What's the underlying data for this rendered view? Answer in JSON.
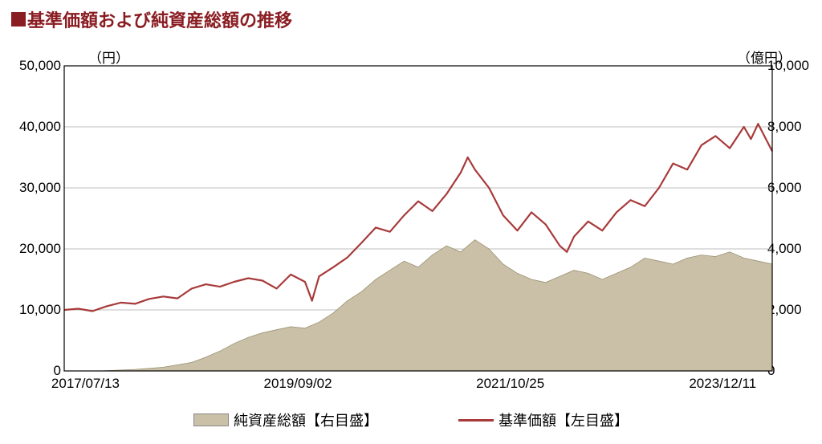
{
  "title": {
    "square_color": "#8a1d22",
    "text": "基準価額および純資産総額の推移",
    "text_color": "#8a1d22",
    "fontsize": 22
  },
  "chart": {
    "type": "dual-axis-line-area",
    "plot_bg": "#ffffff",
    "border_color": "#000000",
    "grid_color": "#bfbfbf",
    "grid_width": 1,
    "left_axis": {
      "unit_label": "（円）",
      "min": 0,
      "max": 50000,
      "step": 10000,
      "tick_labels": [
        "0",
        "10,000",
        "20,000",
        "30,000",
        "40,000",
        "50,000"
      ],
      "label_fontsize": 17
    },
    "right_axis": {
      "unit_label": "（億円）",
      "min": 0,
      "max": 10000,
      "step": 2000,
      "tick_labels": [
        "0",
        "2,000",
        "4,000",
        "6,000",
        "8,000",
        "10,000"
      ],
      "label_fontsize": 17
    },
    "x_axis": {
      "positions_pct": [
        3,
        33,
        63,
        93
      ],
      "labels": [
        "2017/07/13",
        "2019/09/02",
        "2021/10/25",
        "2023/12/11"
      ],
      "label_fontsize": 17
    },
    "series_area": {
      "name": "純資産総額【右目盛】",
      "color_fill": "#c9c0a7",
      "color_stroke": "#9a9072",
      "points": [
        [
          0.0,
          0
        ],
        [
          0.05,
          0
        ],
        [
          0.1,
          50
        ],
        [
          0.14,
          120
        ],
        [
          0.18,
          280
        ],
        [
          0.2,
          450
        ],
        [
          0.22,
          650
        ],
        [
          0.24,
          900
        ],
        [
          0.26,
          1100
        ],
        [
          0.28,
          1250
        ],
        [
          0.3,
          1350
        ],
        [
          0.32,
          1450
        ],
        [
          0.34,
          1400
        ],
        [
          0.36,
          1600
        ],
        [
          0.38,
          1900
        ],
        [
          0.4,
          2300
        ],
        [
          0.42,
          2600
        ],
        [
          0.44,
          3000
        ],
        [
          0.46,
          3300
        ],
        [
          0.48,
          3600
        ],
        [
          0.5,
          3400
        ],
        [
          0.52,
          3800
        ],
        [
          0.54,
          4100
        ],
        [
          0.56,
          3900
        ],
        [
          0.58,
          4300
        ],
        [
          0.6,
          4000
        ],
        [
          0.62,
          3500
        ],
        [
          0.64,
          3200
        ],
        [
          0.66,
          3000
        ],
        [
          0.68,
          2900
        ],
        [
          0.7,
          3100
        ],
        [
          0.72,
          3300
        ],
        [
          0.74,
          3200
        ],
        [
          0.76,
          3000
        ],
        [
          0.78,
          3200
        ],
        [
          0.8,
          3400
        ],
        [
          0.82,
          3700
        ],
        [
          0.84,
          3600
        ],
        [
          0.86,
          3500
        ],
        [
          0.88,
          3700
        ],
        [
          0.9,
          3800
        ],
        [
          0.92,
          3750
        ],
        [
          0.94,
          3900
        ],
        [
          0.96,
          3700
        ],
        [
          0.98,
          3600
        ],
        [
          1.0,
          3500
        ]
      ]
    },
    "series_line": {
      "name": "基準価額【左目盛】",
      "color": "#a83a3a",
      "width": 2.2,
      "points": [
        [
          0.0,
          10000
        ],
        [
          0.02,
          10200
        ],
        [
          0.04,
          9800
        ],
        [
          0.06,
          10600
        ],
        [
          0.08,
          11200
        ],
        [
          0.1,
          11000
        ],
        [
          0.12,
          11800
        ],
        [
          0.14,
          12200
        ],
        [
          0.16,
          11900
        ],
        [
          0.18,
          13500
        ],
        [
          0.2,
          14200
        ],
        [
          0.22,
          13800
        ],
        [
          0.24,
          14600
        ],
        [
          0.26,
          15200
        ],
        [
          0.28,
          14800
        ],
        [
          0.3,
          13500
        ],
        [
          0.32,
          15800
        ],
        [
          0.34,
          14600
        ],
        [
          0.35,
          11500
        ],
        [
          0.36,
          15500
        ],
        [
          0.38,
          17000
        ],
        [
          0.4,
          18600
        ],
        [
          0.42,
          21000
        ],
        [
          0.44,
          23500
        ],
        [
          0.46,
          22800
        ],
        [
          0.48,
          25500
        ],
        [
          0.5,
          27800
        ],
        [
          0.52,
          26200
        ],
        [
          0.54,
          29000
        ],
        [
          0.56,
          32500
        ],
        [
          0.57,
          35000
        ],
        [
          0.58,
          33000
        ],
        [
          0.6,
          30000
        ],
        [
          0.62,
          25500
        ],
        [
          0.64,
          23000
        ],
        [
          0.66,
          26000
        ],
        [
          0.68,
          24000
        ],
        [
          0.7,
          20500
        ],
        [
          0.71,
          19500
        ],
        [
          0.72,
          22000
        ],
        [
          0.74,
          24500
        ],
        [
          0.76,
          23000
        ],
        [
          0.78,
          26000
        ],
        [
          0.8,
          28000
        ],
        [
          0.82,
          27000
        ],
        [
          0.84,
          30000
        ],
        [
          0.86,
          34000
        ],
        [
          0.88,
          33000
        ],
        [
          0.9,
          37000
        ],
        [
          0.92,
          38500
        ],
        [
          0.94,
          36500
        ],
        [
          0.96,
          40000
        ],
        [
          0.97,
          38000
        ],
        [
          0.98,
          40500
        ],
        [
          1.0,
          36000
        ]
      ]
    }
  },
  "legend": {
    "area_label": "純資産総額【右目盛】",
    "line_label": "基準価額【左目盛】",
    "fontsize": 18
  }
}
